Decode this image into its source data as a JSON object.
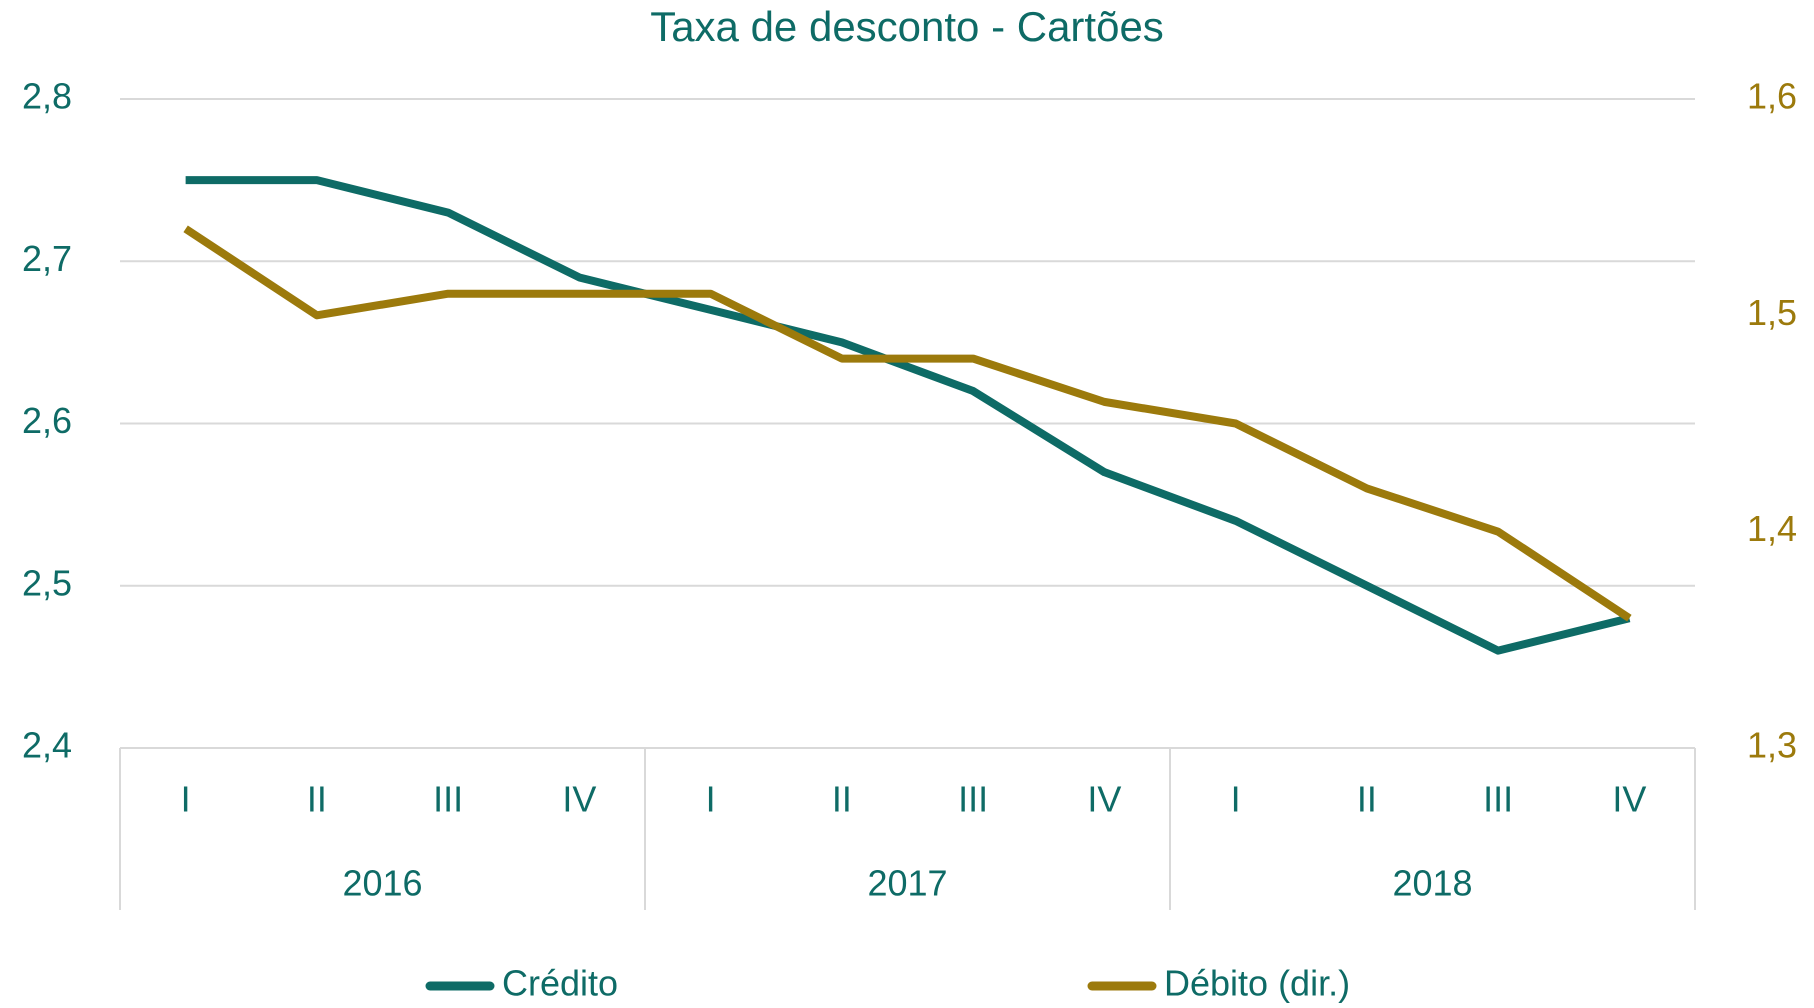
{
  "chart_data": {
    "type": "line",
    "title": "Taxa de desconto - Cartões",
    "categories": [
      "I",
      "II",
      "III",
      "IV",
      "I",
      "II",
      "III",
      "IV",
      "I",
      "II",
      "III",
      "IV"
    ],
    "groups": [
      "2016",
      "2017",
      "2018"
    ],
    "series": [
      {
        "name": "Crédito",
        "color": "#0e6b66",
        "values": [
          2.75,
          2.75,
          2.73,
          2.69,
          2.67,
          2.65,
          2.62,
          2.57,
          2.54,
          2.5,
          2.46,
          2.48
        ]
      },
      {
        "name": "Débito (dir.)",
        "color": "#9c7a0c",
        "axis": "y2",
        "values": [
          1.54,
          1.5,
          1.51,
          1.51,
          1.51,
          1.48,
          1.48,
          1.46,
          1.45,
          1.42,
          1.4,
          1.36
        ]
      }
    ],
    "ylim": [
      2.4,
      2.8
    ],
    "yticks": [
      {
        "value": 2.4,
        "label": "2,4"
      },
      {
        "value": 2.5,
        "label": "2,5"
      },
      {
        "value": 2.6,
        "label": "2,6"
      },
      {
        "value": 2.7,
        "label": "2,7"
      },
      {
        "value": 2.8,
        "label": "2,8"
      }
    ],
    "y2lim": [
      1.3,
      1.6
    ],
    "y2ticks": [
      {
        "value": 1.3,
        "label": "1,3"
      },
      {
        "value": 1.4,
        "label": "1,4"
      },
      {
        "value": 1.5,
        "label": "1,5"
      },
      {
        "value": 1.6,
        "label": "1,6"
      }
    ],
    "grid": true,
    "legend": "bottom"
  }
}
